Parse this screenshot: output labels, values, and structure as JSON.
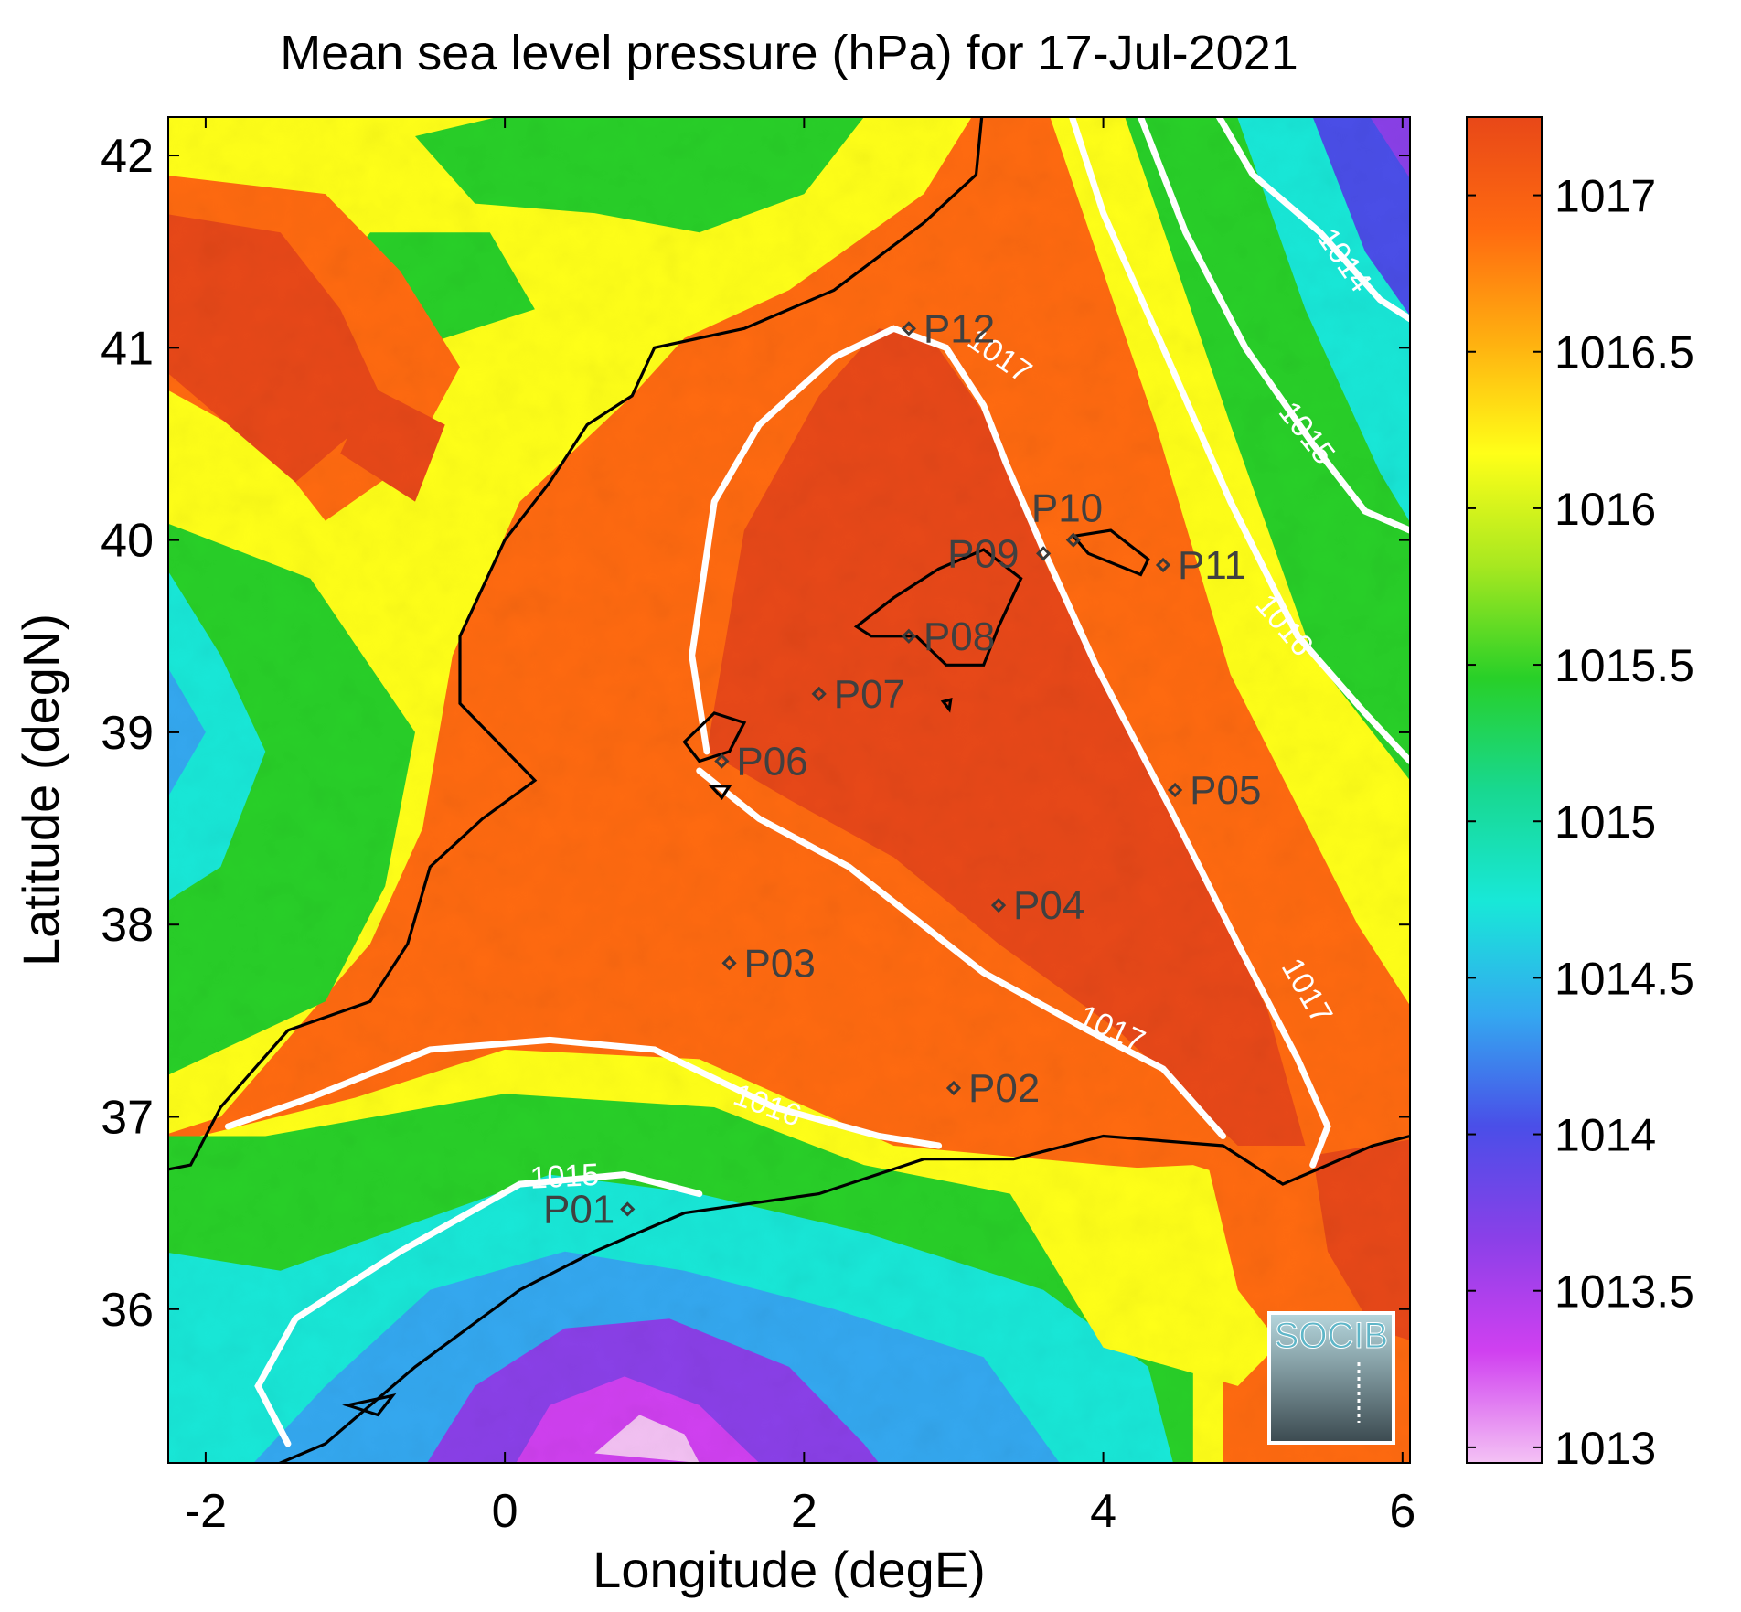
{
  "chart_data": {
    "type": "heatmap",
    "title": "Mean sea level pressure (hPa) for 17-Jul-2021",
    "xlabel": "Longitude (degE)",
    "ylabel": "Latitude (degN)",
    "xlim": [
      -2.25,
      6.05
    ],
    "ylim": [
      35.2,
      42.2
    ],
    "x_ticks": [
      -2,
      0,
      2,
      4,
      6
    ],
    "x_tick_labels": [
      "-2",
      "0",
      "2",
      "4",
      "6"
    ],
    "y_ticks": [
      36,
      37,
      38,
      39,
      40,
      41,
      42
    ],
    "y_tick_labels": [
      "36",
      "37",
      "38",
      "39",
      "40",
      "41",
      "42"
    ],
    "colorbar": {
      "range": [
        1012.95,
        1017.25
      ],
      "ticks": [
        1013,
        1013.5,
        1014,
        1014.5,
        1015,
        1015.5,
        1016,
        1016.5,
        1017
      ],
      "tick_labels": [
        "1013",
        "1013.5",
        "1014",
        "1014.5",
        "1015",
        "1015.5",
        "1016",
        "1016.5",
        "1017"
      ],
      "colors": [
        "#f4c2f4",
        "#d040f0",
        "#8a40e8",
        "#4a4ee8",
        "#34a8f0",
        "#18e8d8",
        "#18d890",
        "#28d028",
        "#a8e820",
        "#ffff18",
        "#ffb010",
        "#ff6a10",
        "#e84818"
      ]
    },
    "points": [
      {
        "label": "P01",
        "lon": 0.82,
        "lat": 36.52
      },
      {
        "label": "P02",
        "lon": 3.0,
        "lat": 37.15
      },
      {
        "label": "P03",
        "lon": 1.5,
        "lat": 37.8
      },
      {
        "label": "P04",
        "lon": 3.3,
        "lat": 38.1
      },
      {
        "label": "P05",
        "lon": 4.48,
        "lat": 38.7
      },
      {
        "label": "P06",
        "lon": 1.45,
        "lat": 38.85
      },
      {
        "label": "P07",
        "lon": 2.1,
        "lat": 39.2
      },
      {
        "label": "P08",
        "lon": 2.7,
        "lat": 39.5
      },
      {
        "label": "P09",
        "lon": 3.6,
        "lat": 39.93
      },
      {
        "label": "P10",
        "lon": 3.8,
        "lat": 40.0
      },
      {
        "label": "P11",
        "lon": 4.4,
        "lat": 39.87
      },
      {
        "label": "P12",
        "lon": 2.7,
        "lat": 41.1
      }
    ],
    "contour_labels": [
      {
        "text": "1014",
        "lon": 5.6,
        "lat": 41.45,
        "angle": 55
      },
      {
        "text": "1015",
        "lon": 5.35,
        "lat": 40.55,
        "angle": 52
      },
      {
        "text": "1016",
        "lon": 5.2,
        "lat": 39.55,
        "angle": 50
      },
      {
        "text": "1017",
        "lon": 3.3,
        "lat": 40.95,
        "angle": 35
      },
      {
        "text": "1017",
        "lon": 5.35,
        "lat": 37.65,
        "angle": 60
      },
      {
        "text": "1017",
        "lon": 4.05,
        "lat": 37.45,
        "angle": 25
      },
      {
        "text": "1016",
        "lon": 1.75,
        "lat": 37.05,
        "angle": 20
      },
      {
        "text": "1015",
        "lon": 0.4,
        "lat": 36.68,
        "angle": -3
      }
    ],
    "logo_text": "SOCIB"
  }
}
